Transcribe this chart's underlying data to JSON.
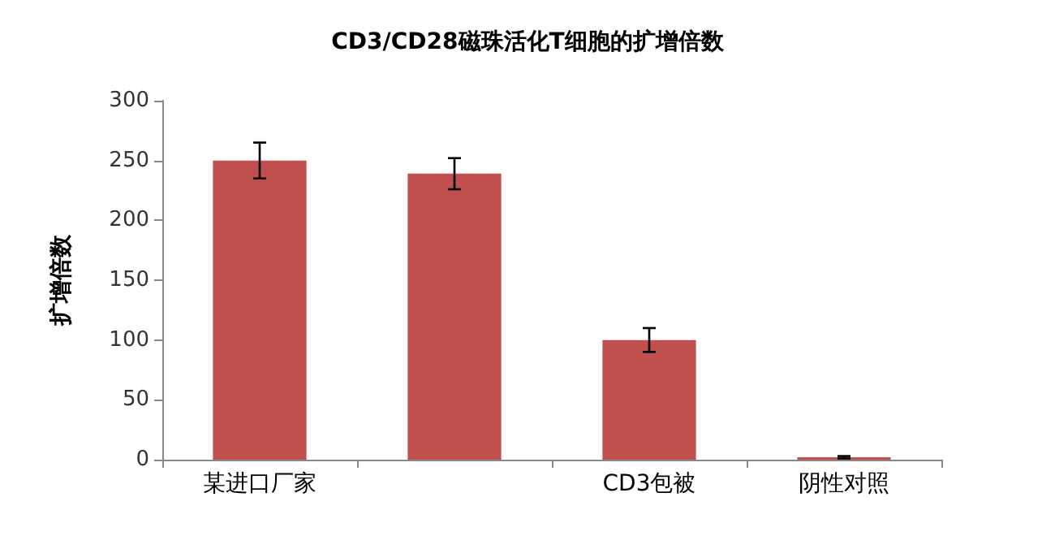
{
  "chart_data": {
    "type": "bar",
    "title": "CD3/CD28磁珠活化T细胞的扩增倍数",
    "ylabel": "扩增倍数",
    "categories": [
      "某进口厂家",
      null,
      "CD3包被",
      "阴性对照"
    ],
    "values": [
      250,
      239,
      100,
      2
    ],
    "errors": [
      15,
      13,
      10,
      1
    ],
    "color": "#c0504d",
    "ylim": [
      0,
      300
    ],
    "yticks": [
      0,
      50,
      100,
      150,
      200,
      250,
      300
    ],
    "grid": false
  }
}
